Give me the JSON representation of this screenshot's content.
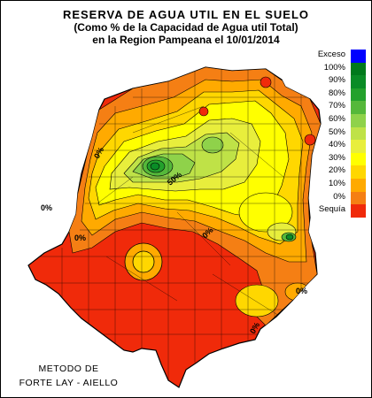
{
  "title": {
    "line1": "RESERVA DE AGUA UTIL EN EL SUELO",
    "line2": "(Como %  de la Capacidad de  Agua util Total)",
    "line3": "en la Region Pampeana el 10/01/2014"
  },
  "method": {
    "line1": "METODO DE",
    "line2": "FORTE LAY - AIELLO"
  },
  "legend": [
    {
      "label": "Exceso",
      "color": "#0000ff"
    },
    {
      "label": "100%",
      "color": "#007a1c"
    },
    {
      "label": "90%",
      "color": "#0a8c26"
    },
    {
      "label": "80%",
      "color": "#23a12c"
    },
    {
      "label": "70%",
      "color": "#55b83a"
    },
    {
      "label": "60%",
      "color": "#8fd24a"
    },
    {
      "label": "50%",
      "color": "#bfe247"
    },
    {
      "label": "40%",
      "color": "#e8ee3c"
    },
    {
      "label": "30%",
      "color": "#ffff00"
    },
    {
      "label": "20%",
      "color": "#ffd700"
    },
    {
      "label": "10%",
      "color": "#ffaa00"
    },
    {
      "label": "0%",
      "color": "#f57f14"
    },
    {
      "label": "Sequía",
      "color": "#f02a0a"
    }
  ],
  "map_labels": {
    "pct_0": "0%",
    "pct_50": "50%"
  }
}
